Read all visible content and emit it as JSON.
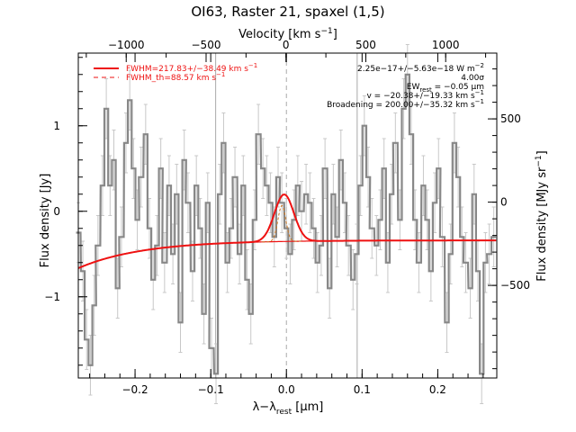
{
  "chart_data": {
    "type": "line",
    "title": "OI63, Raster 21, spaxel (1,5)",
    "xlabel_main": "λ−λ",
    "xlabel_sub": "rest",
    "xlabel_unit": " [μm]",
    "ylabel_left": "Flux density [Jy]",
    "ylabel_right_main": "Flux density [MJy sr",
    "ylabel_right_sup": "−1",
    "ylabel_right_end": "]",
    "top_axis_main": "Velocity [km s",
    "top_axis_sup": "−1",
    "top_axis_end": "]",
    "xlim": [
      -0.275,
      0.278
    ],
    "ylim": [
      -1.95,
      1.85
    ],
    "right_ylim": [
      -1056,
      895
    ],
    "top_xlim": [
      -1300,
      1320
    ],
    "x_ticks": [
      {
        "v": -0.2,
        "label": "−0.2"
      },
      {
        "v": -0.1,
        "label": "−0.1"
      },
      {
        "v": 0.0,
        "label": "0.0"
      },
      {
        "v": 0.1,
        "label": "0.1"
      },
      {
        "v": 0.2,
        "label": "0.2"
      }
    ],
    "y_ticks": [
      {
        "v": -1,
        "label": "−1"
      },
      {
        "v": 0,
        "label": "0"
      },
      {
        "v": 1,
        "label": "1"
      }
    ],
    "right_ticks": [
      {
        "v": -500,
        "label": "−500"
      },
      {
        "v": 0,
        "label": "0"
      },
      {
        "v": 500,
        "label": "500"
      }
    ],
    "top_ticks": [
      {
        "v": -1000,
        "label": "−1000"
      },
      {
        "v": -500,
        "label": "−500"
      },
      {
        "v": 0,
        "label": "0"
      },
      {
        "v": 500,
        "label": "500"
      },
      {
        "v": 1000,
        "label": "1000"
      }
    ],
    "vlines": [
      -0.0935,
      0.0935
    ],
    "rest_line": 0.0,
    "data": {
      "x": [
        -0.275,
        -0.269,
        -0.264,
        -0.259,
        -0.254,
        -0.249,
        -0.243,
        -0.238,
        -0.233,
        -0.228,
        -0.223,
        -0.218,
        -0.212,
        -0.207,
        -0.202,
        -0.197,
        -0.192,
        -0.186,
        -0.181,
        -0.176,
        -0.171,
        -0.166,
        -0.161,
        -0.155,
        -0.15,
        -0.145,
        -0.14,
        -0.135,
        -0.13,
        -0.124,
        -0.119,
        -0.114,
        -0.109,
        -0.104,
        -0.099,
        -0.093,
        -0.088,
        -0.083,
        -0.078,
        -0.073,
        -0.068,
        -0.062,
        -0.057,
        -0.052,
        -0.047,
        -0.042,
        -0.037,
        -0.031,
        -0.026,
        -0.021,
        -0.016,
        -0.011,
        -0.006,
        0.0,
        0.005,
        0.01,
        0.015,
        0.02,
        0.026,
        0.031,
        0.036,
        0.041,
        0.046,
        0.051,
        0.057,
        0.062,
        0.067,
        0.072,
        0.077,
        0.082,
        0.088,
        0.093,
        0.098,
        0.103,
        0.108,
        0.113,
        0.119,
        0.124,
        0.129,
        0.134,
        0.139,
        0.144,
        0.15,
        0.155,
        0.16,
        0.165,
        0.17,
        0.175,
        0.181,
        0.186,
        0.191,
        0.196,
        0.201,
        0.206,
        0.212,
        0.217,
        0.222,
        0.227,
        0.232,
        0.237,
        0.243,
        0.248,
        0.253,
        0.258,
        0.263,
        0.268,
        0.274
      ],
      "y": [
        -0.25,
        -0.7,
        -1.5,
        -1.8,
        -1.1,
        -0.4,
        0.3,
        1.2,
        0.3,
        0.6,
        -0.9,
        -0.3,
        0.8,
        1.3,
        0.5,
        -0.1,
        0.4,
        0.9,
        -0.2,
        -0.8,
        -0.4,
        0.5,
        -0.6,
        0.3,
        -0.5,
        0.2,
        -1.3,
        0.6,
        0.1,
        -0.7,
        0.3,
        -0.2,
        -1.2,
        0.1,
        -1.6,
        -1.9,
        0.2,
        0.8,
        -0.6,
        -0.2,
        0.4,
        -0.5,
        0.3,
        -0.8,
        -1.2,
        -0.1,
        0.9,
        0.5,
        0.3,
        0.1,
        -0.3,
        0.4,
        0.1,
        -0.2,
        -0.5,
        -0.1,
        0.3,
        0.0,
        0.2,
        0.1,
        -0.2,
        -0.6,
        -0.4,
        0.5,
        -0.9,
        0.2,
        -0.3,
        0.6,
        0.1,
        -0.4,
        -0.8,
        -0.5,
        0.3,
        1.0,
        0.4,
        -0.2,
        -0.4,
        -0.1,
        0.5,
        -0.6,
        0.2,
        0.8,
        -0.1,
        1.2,
        1.6,
        0.9,
        -0.1,
        -0.6,
        0.3,
        -0.1,
        -0.7,
        0.1,
        0.5,
        -0.3,
        -1.3,
        -0.5,
        0.8,
        0.4,
        -0.3,
        -0.6,
        -0.9,
        0.2,
        -0.7,
        -1.9,
        -0.6,
        -0.5,
        -0.3
      ],
      "err": 0.35
    },
    "model": {
      "continuum_a": -0.64,
      "continuum_b": -0.34,
      "continuum_x0": -0.268,
      "continuum_scale": 0.085,
      "peak_amp": 0.55,
      "peak_center": -0.003,
      "peak_sigma": 0.0128
    },
    "thin_profile": {
      "amp": 0.42,
      "center": -0.006,
      "sigma": 0.0052
    },
    "colors": {
      "data": "#888888",
      "errorbars": "#c8c8c8",
      "fit": "#ee1111",
      "thin": "#cc7722",
      "rest_line": "#aaaaaa"
    },
    "legend": [
      {
        "style": "solid",
        "main": "FWHM=217.83+/−38.49 km s",
        "sup": "−1"
      },
      {
        "style": "dashed",
        "main": "FWHM_th=88.57 km s",
        "sup": "−1"
      }
    ],
    "annotations": [
      {
        "main": "2.25e−17+/−5.63e−18 W m",
        "sup": "−2"
      },
      {
        "main": "4.00σ",
        "sup": ""
      },
      {
        "main": "EW",
        "sub": "rest",
        "tail": " = −0.05 μm"
      },
      {
        "main": "v = −20.38+/−19.33 km s",
        "sup": "−1"
      },
      {
        "main": "Broadening = 200.00+/−35.32 km s",
        "sup": "−1"
      }
    ]
  }
}
